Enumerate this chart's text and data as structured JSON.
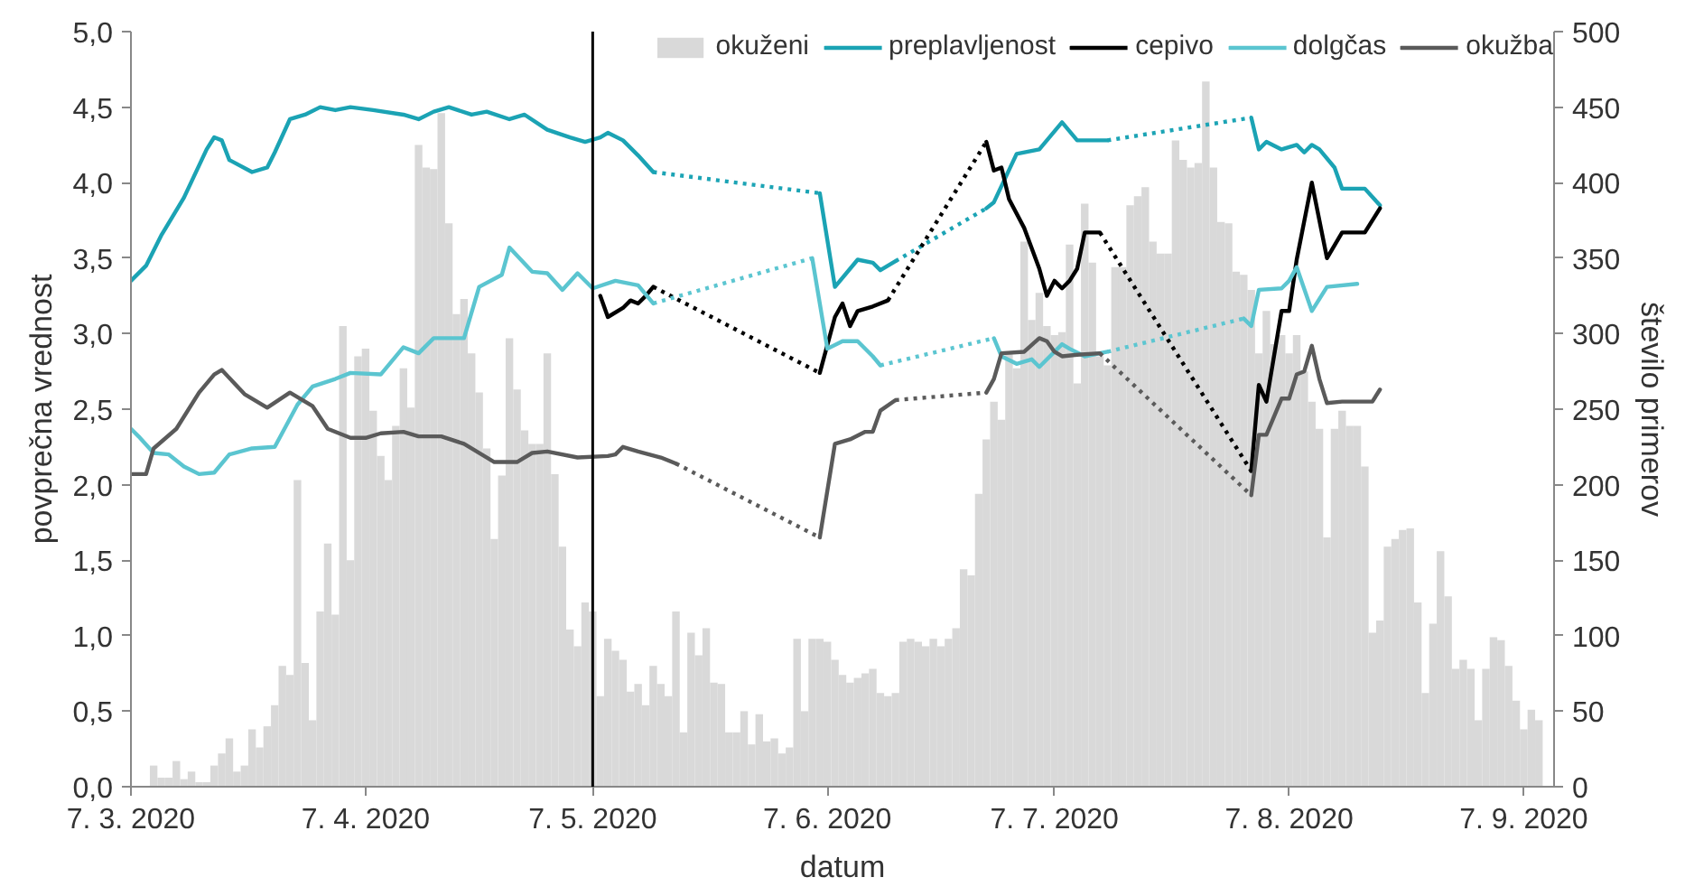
{
  "chart_data": {
    "type": "bar",
    "xlabel": "datum",
    "ylabel": "povprečna vrednost",
    "y2label": "število primerov",
    "xlim": [
      "2020-03-07",
      "2020-09-11"
    ],
    "xticks": [
      {
        "value": "2020-03-07",
        "label": "7. 3. 2020"
      },
      {
        "value": "2020-04-07",
        "label": "7. 4. 2020"
      },
      {
        "value": "2020-05-07",
        "label": "7. 5. 2020"
      },
      {
        "value": "2020-06-07",
        "label": "7. 6. 2020"
      },
      {
        "value": "2020-07-07",
        "label": "7. 7. 2020"
      },
      {
        "value": "2020-08-07",
        "label": "7. 8. 2020"
      },
      {
        "value": "2020-09-07",
        "label": "7. 9. 2020"
      }
    ],
    "ylim": [
      0,
      5
    ],
    "yticks": [
      {
        "value": 0,
        "label": "0,0"
      },
      {
        "value": 0.5,
        "label": "0,5"
      },
      {
        "value": 1,
        "label": "1,0"
      },
      {
        "value": 1.5,
        "label": "1,5"
      },
      {
        "value": 2,
        "label": "2,0"
      },
      {
        "value": 2.5,
        "label": "2,5"
      },
      {
        "value": 3,
        "label": "3,0"
      },
      {
        "value": 3.5,
        "label": "3,5"
      },
      {
        "value": 4,
        "label": "4,0"
      },
      {
        "value": 4.5,
        "label": "4,5"
      },
      {
        "value": 5,
        "label": "5,0"
      }
    ],
    "y2lim": [
      0,
      500
    ],
    "y2ticks": [
      0,
      50,
      100,
      150,
      200,
      250,
      300,
      350,
      400,
      450,
      500
    ],
    "grid": false,
    "legend": "top right",
    "ref_lines": [
      {
        "axis": "x",
        "value": "2020-05-07",
        "color": "#000000"
      }
    ],
    "series": [
      {
        "name": "okuženi",
        "axis": "y2",
        "color": "#d9d9d9",
        "x": [
          "2020-03-07",
          "2020-03-08",
          "2020-03-09",
          "2020-03-10",
          "2020-03-11",
          "2020-03-12",
          "2020-03-13",
          "2020-03-14",
          "2020-03-15",
          "2020-03-16",
          "2020-03-17",
          "2020-03-18",
          "2020-03-19",
          "2020-03-20",
          "2020-03-21",
          "2020-03-22",
          "2020-03-23",
          "2020-03-24",
          "2020-03-25",
          "2020-03-26",
          "2020-03-27",
          "2020-03-28",
          "2020-03-29",
          "2020-03-30",
          "2020-03-31",
          "2020-04-01",
          "2020-04-02",
          "2020-04-03",
          "2020-04-04",
          "2020-04-05",
          "2020-04-06",
          "2020-04-07",
          "2020-04-08",
          "2020-04-09",
          "2020-04-10",
          "2020-04-11",
          "2020-04-12",
          "2020-04-13",
          "2020-04-14",
          "2020-04-15",
          "2020-04-16",
          "2020-04-17",
          "2020-04-18",
          "2020-04-19",
          "2020-04-20",
          "2020-04-21",
          "2020-04-22",
          "2020-04-23",
          "2020-04-24",
          "2020-04-25",
          "2020-04-26",
          "2020-04-27",
          "2020-04-28",
          "2020-04-29",
          "2020-04-30",
          "2020-05-01",
          "2020-05-02",
          "2020-05-03",
          "2020-05-04",
          "2020-05-05",
          "2020-05-06",
          "2020-05-07",
          "2020-05-08",
          "2020-05-09",
          "2020-05-10",
          "2020-05-11",
          "2020-05-12",
          "2020-05-13",
          "2020-05-14",
          "2020-05-15",
          "2020-05-16",
          "2020-05-17",
          "2020-05-18",
          "2020-05-19",
          "2020-05-20",
          "2020-05-21",
          "2020-05-22",
          "2020-05-23",
          "2020-05-24",
          "2020-05-25",
          "2020-05-26",
          "2020-05-27",
          "2020-05-28",
          "2020-05-29",
          "2020-05-30",
          "2020-05-31",
          "2020-06-01",
          "2020-06-02",
          "2020-06-03",
          "2020-06-04",
          "2020-06-05",
          "2020-06-06",
          "2020-06-07",
          "2020-06-08",
          "2020-06-09",
          "2020-06-10",
          "2020-06-11",
          "2020-06-12",
          "2020-06-13",
          "2020-06-14",
          "2020-06-15",
          "2020-06-16",
          "2020-06-17",
          "2020-06-18",
          "2020-06-19",
          "2020-06-20",
          "2020-06-21",
          "2020-06-22",
          "2020-06-23",
          "2020-06-24",
          "2020-06-25",
          "2020-06-26",
          "2020-06-27",
          "2020-06-28",
          "2020-06-29",
          "2020-06-30",
          "2020-07-01",
          "2020-07-02",
          "2020-07-03",
          "2020-07-04",
          "2020-07-05",
          "2020-07-06",
          "2020-07-07",
          "2020-07-08",
          "2020-07-09",
          "2020-07-10",
          "2020-07-11",
          "2020-07-12",
          "2020-07-13",
          "2020-07-14",
          "2020-07-15",
          "2020-07-16",
          "2020-07-17",
          "2020-07-18",
          "2020-07-19",
          "2020-07-20",
          "2020-07-21",
          "2020-07-22",
          "2020-07-23",
          "2020-07-24",
          "2020-07-25",
          "2020-07-26",
          "2020-07-27",
          "2020-07-28",
          "2020-07-29",
          "2020-07-30",
          "2020-07-31",
          "2020-08-01",
          "2020-08-02",
          "2020-08-03",
          "2020-08-04",
          "2020-08-05",
          "2020-08-06",
          "2020-08-07",
          "2020-08-08",
          "2020-08-09",
          "2020-08-10",
          "2020-08-11",
          "2020-08-12",
          "2020-08-13",
          "2020-08-14",
          "2020-08-15",
          "2020-08-16",
          "2020-08-17",
          "2020-08-18",
          "2020-08-19",
          "2020-08-20",
          "2020-08-21",
          "2020-08-22",
          "2020-08-23",
          "2020-08-24",
          "2020-08-25",
          "2020-08-26",
          "2020-08-27",
          "2020-08-28",
          "2020-08-29",
          "2020-08-30",
          "2020-08-31",
          "2020-09-01",
          "2020-09-02",
          "2020-09-03",
          "2020-09-04",
          "2020-09-05",
          "2020-09-06",
          "2020-09-07",
          "2020-09-08",
          "2020-09-09"
        ],
        "values": [
          0,
          0,
          0,
          14,
          6,
          6,
          17,
          5,
          10,
          3,
          3,
          14,
          22,
          32,
          10,
          14,
          38,
          26,
          40,
          54,
          80,
          74,
          203,
          82,
          44,
          116,
          161,
          114,
          305,
          150,
          285,
          290,
          249,
          219,
          203,
          239,
          277,
          251,
          425,
          410,
          409,
          446,
          373,
          313,
          323,
          287,
          261,
          224,
          164,
          206,
          297,
          263,
          236,
          227,
          227,
          287,
          207,
          159,
          104,
          93,
          122,
          116,
          60,
          98,
          90,
          84,
          63,
          68,
          54,
          80,
          68,
          60,
          116,
          36,
          102,
          87,
          105,
          69,
          68,
          36,
          36,
          50,
          28,
          48,
          30,
          32,
          22,
          26,
          98,
          50,
          98,
          98,
          96,
          84,
          74,
          69,
          72,
          75,
          78,
          62,
          60,
          62,
          96,
          98,
          96,
          93,
          98,
          93,
          98,
          105,
          144,
          140,
          194,
          230,
          255,
          243,
          287,
          277,
          361,
          309,
          327,
          305,
          299,
          301,
          359,
          267,
          386,
          347,
          285,
          279,
          344,
          344,
          385,
          391,
          397,
          361,
          353,
          353,
          428,
          415,
          410,
          413,
          467,
          410,
          374,
          373,
          341,
          339,
          329,
          287,
          315,
          293,
          299,
          287,
          299,
          275,
          255,
          237,
          165,
          237,
          249,
          239,
          239,
          212,
          102,
          110,
          159,
          164,
          170,
          171,
          122,
          62,
          108,
          156,
          126,
          78,
          84,
          78,
          44,
          78,
          99,
          97,
          80,
          57,
          38,
          51,
          44
        ]
      },
      {
        "name": "preplavljenost",
        "type": "line",
        "color": "#1ba3b4",
        "line_style": "solid",
        "x": [
          "2020-03-07",
          "2020-03-09",
          "2020-03-11",
          "2020-03-14",
          "2020-03-17",
          "2020-03-18",
          "2020-03-19",
          "2020-03-20",
          "2020-03-23",
          "2020-03-25",
          "2020-03-26",
          "2020-03-28",
          "2020-03-30",
          "2020-04-01",
          "2020-04-03",
          "2020-04-05",
          "2020-04-08",
          "2020-04-12",
          "2020-04-14",
          "2020-04-16",
          "2020-04-18",
          "2020-04-21",
          "2020-04-23",
          "2020-04-26",
          "2020-04-28",
          "2020-05-01",
          "2020-05-04",
          "2020-05-06",
          "2020-05-08",
          "2020-05-09",
          "2020-05-11",
          "2020-05-13",
          "2020-05-15",
          "2020-05-20",
          "2020-06-06",
          "2020-06-08",
          "2020-06-11",
          "2020-06-13",
          "2020-06-14",
          "2020-06-16",
          "2020-06-20",
          "2020-06-28",
          "2020-06-29",
          "2020-07-02",
          "2020-07-05",
          "2020-07-08",
          "2020-07-10",
          "2020-07-14",
          "2020-07-20",
          "2020-08-02",
          "2020-08-03",
          "2020-08-04",
          "2020-08-06",
          "2020-08-08",
          "2020-08-09",
          "2020-08-10",
          "2020-08-11",
          "2020-08-13",
          "2020-08-14",
          "2020-08-17",
          "2020-08-19"
        ],
        "values": [
          3.35,
          3.45,
          3.65,
          3.9,
          4.22,
          4.3,
          4.28,
          4.15,
          4.07,
          4.1,
          4.2,
          4.42,
          4.45,
          4.5,
          4.48,
          4.5,
          4.48,
          4.45,
          4.42,
          4.47,
          4.5,
          4.45,
          4.47,
          4.42,
          4.45,
          4.35,
          4.3,
          4.27,
          4.3,
          4.33,
          4.28,
          4.18,
          4.07,
          null,
          3.93,
          3.31,
          3.49,
          3.47,
          3.42,
          3.48,
          null,
          3.83,
          3.87,
          4.19,
          4.22,
          4.4,
          4.28,
          4.28,
          null,
          4.43,
          4.22,
          4.27,
          4.22,
          4.25,
          4.2,
          4.25,
          4.22,
          4.1,
          3.96,
          3.96,
          3.85
        ]
      },
      {
        "name": "cepivo",
        "type": "line",
        "color": "#000000",
        "line_style": "solid",
        "x": [
          "2020-05-08",
          "2020-05-09",
          "2020-05-11",
          "2020-05-12",
          "2020-05-13",
          "2020-05-14",
          "2020-05-15",
          "2020-05-25",
          "2020-06-06",
          "2020-06-08",
          "2020-06-09",
          "2020-06-10",
          "2020-06-11",
          "2020-06-13",
          "2020-06-15",
          "2020-06-20",
          "2020-06-28",
          "2020-06-29",
          "2020-06-30",
          "2020-07-01",
          "2020-07-03",
          "2020-07-05",
          "2020-07-06",
          "2020-07-07",
          "2020-07-08",
          "2020-07-09",
          "2020-07-10",
          "2020-07-11",
          "2020-07-13",
          "2020-07-20",
          "2020-08-02",
          "2020-08-03",
          "2020-08-04",
          "2020-08-06",
          "2020-08-07",
          "2020-08-08",
          "2020-08-10",
          "2020-08-12",
          "2020-08-14",
          "2020-08-17",
          "2020-08-19"
        ],
        "values": [
          3.25,
          3.11,
          3.17,
          3.22,
          3.2,
          3.25,
          3.31,
          null,
          2.74,
          3.11,
          3.2,
          3.05,
          3.15,
          3.18,
          3.22,
          null,
          4.27,
          4.08,
          4.1,
          3.89,
          3.7,
          3.43,
          3.25,
          3.35,
          3.3,
          3.35,
          3.43,
          3.67,
          3.67,
          null,
          2.09,
          2.66,
          2.55,
          3.15,
          3.15,
          3.49,
          4.0,
          3.5,
          3.67,
          3.67,
          3.83
        ]
      },
      {
        "name": "dolgčas",
        "type": "line",
        "color": "#5bc5d0",
        "line_style": "solid",
        "x": [
          "2020-03-07",
          "2020-03-08",
          "2020-03-10",
          "2020-03-12",
          "2020-03-14",
          "2020-03-16",
          "2020-03-18",
          "2020-03-20",
          "2020-03-23",
          "2020-03-26",
          "2020-03-29",
          "2020-03-31",
          "2020-04-03",
          "2020-04-05",
          "2020-04-09",
          "2020-04-12",
          "2020-04-14",
          "2020-04-16",
          "2020-04-20",
          "2020-04-22",
          "2020-04-25",
          "2020-04-26",
          "2020-04-29",
          "2020-05-01",
          "2020-05-03",
          "2020-05-05",
          "2020-05-07",
          "2020-05-10",
          "2020-05-13",
          "2020-05-15",
          "2020-05-25",
          "2020-06-05",
          "2020-06-07",
          "2020-06-09",
          "2020-06-11",
          "2020-06-13",
          "2020-06-14",
          "2020-06-20",
          "2020-06-29",
          "2020-06-30",
          "2020-07-02",
          "2020-07-04",
          "2020-07-05",
          "2020-07-08",
          "2020-07-09",
          "2020-07-11",
          "2020-07-14",
          "2020-07-20",
          "2020-08-01",
          "2020-08-02",
          "2020-08-03",
          "2020-08-06",
          "2020-08-07",
          "2020-08-08",
          "2020-08-10",
          "2020-08-12",
          "2020-08-16"
        ],
        "values": [
          2.37,
          2.32,
          2.21,
          2.2,
          2.12,
          2.07,
          2.08,
          2.2,
          2.24,
          2.25,
          2.53,
          2.65,
          2.7,
          2.74,
          2.73,
          2.91,
          2.87,
          2.97,
          2.97,
          3.31,
          3.39,
          3.57,
          3.41,
          3.4,
          3.29,
          3.4,
          3.3,
          3.35,
          3.32,
          3.2,
          null,
          3.5,
          2.9,
          2.95,
          2.95,
          2.85,
          2.79,
          null,
          2.97,
          2.85,
          2.8,
          2.83,
          2.78,
          2.93,
          2.9,
          2.85,
          2.88,
          null,
          3.1,
          3.05,
          3.29,
          3.3,
          3.35,
          3.44,
          3.15,
          3.31,
          3.33
        ]
      },
      {
        "name": "okužba",
        "type": "line",
        "color": "#5a5a5a",
        "line_style": "solid",
        "x": [
          "2020-03-07",
          "2020-03-09",
          "2020-03-10",
          "2020-03-13",
          "2020-03-16",
          "2020-03-18",
          "2020-03-19",
          "2020-03-22",
          "2020-03-25",
          "2020-03-28",
          "2020-03-31",
          "2020-04-02",
          "2020-04-05",
          "2020-04-07",
          "2020-04-09",
          "2020-04-12",
          "2020-04-14",
          "2020-04-17",
          "2020-04-20",
          "2020-04-24",
          "2020-04-27",
          "2020-04-29",
          "2020-05-01",
          "2020-05-05",
          "2020-05-09",
          "2020-05-10",
          "2020-05-11",
          "2020-05-13",
          "2020-05-16",
          "2020-05-18",
          "2020-05-25",
          "2020-06-06",
          "2020-06-08",
          "2020-06-10",
          "2020-06-12",
          "2020-06-13",
          "2020-06-14",
          "2020-06-16",
          "2020-06-20",
          "2020-06-28",
          "2020-06-29",
          "2020-06-30",
          "2020-07-03",
          "2020-07-05",
          "2020-07-06",
          "2020-07-07",
          "2020-07-08",
          "2020-07-10",
          "2020-07-13",
          "2020-07-20",
          "2020-08-02",
          "2020-08-03",
          "2020-08-04",
          "2020-08-06",
          "2020-08-07",
          "2020-08-08",
          "2020-08-09",
          "2020-08-10",
          "2020-08-11",
          "2020-08-12",
          "2020-08-14",
          "2020-08-18",
          "2020-08-19"
        ],
        "values": [
          2.07,
          2.07,
          2.24,
          2.37,
          2.61,
          2.73,
          2.76,
          2.6,
          2.51,
          2.61,
          2.52,
          2.37,
          2.31,
          2.31,
          2.34,
          2.35,
          2.32,
          2.32,
          2.27,
          2.15,
          2.15,
          2.21,
          2.22,
          2.18,
          2.19,
          2.2,
          2.25,
          2.22,
          2.18,
          2.14,
          null,
          1.65,
          2.27,
          2.3,
          2.35,
          2.35,
          2.49,
          2.56,
          null,
          2.61,
          2.7,
          2.87,
          2.88,
          2.97,
          2.95,
          2.88,
          2.85,
          2.86,
          2.87,
          null,
          1.93,
          2.33,
          2.33,
          2.57,
          2.57,
          2.73,
          2.75,
          2.92,
          2.7,
          2.54,
          2.55,
          2.55,
          2.63
        ]
      },
      {
        "type": "line",
        "color": "#1ca4b5",
        "line_style": "dotted",
        "x": [
          "2020-05-15",
          "2020-06-06",
          "2020-06-10",
          "2020-06-16",
          "2020-06-28",
          "2020-07-01",
          "2020-07-14",
          "2020-08-02"
        ],
        "values": [
          4.07,
          3.93,
          null,
          3.48,
          3.83,
          null,
          4.28,
          4.43
        ]
      },
      {
        "type": "line",
        "color": "#010101",
        "line_style": "dotted",
        "x": [
          "2020-05-15",
          "2020-06-06",
          "2020-06-10",
          "2020-06-15",
          "2020-06-28",
          "2020-07-01",
          "2020-07-13",
          "2020-08-02"
        ],
        "values": [
          3.31,
          2.74,
          null,
          3.22,
          4.27,
          null,
          3.67,
          2.09
        ]
      },
      {
        "type": "line",
        "color": "#5cc6d1",
        "line_style": "dotted",
        "x": [
          "2020-05-15",
          "2020-06-05",
          "2020-06-10",
          "2020-06-14",
          "2020-06-29",
          "2020-07-01",
          "2020-07-14",
          "2020-08-01"
        ],
        "values": [
          3.2,
          3.5,
          null,
          2.79,
          2.97,
          null,
          2.88,
          3.1
        ]
      },
      {
        "type": "line",
        "color": "#5b5b5b",
        "line_style": "dotted",
        "x": [
          "2020-05-18",
          "2020-06-06",
          "2020-06-10",
          "2020-06-16",
          "2020-06-28",
          "2020-07-01",
          "2020-07-13",
          "2020-08-02"
        ],
        "values": [
          2.14,
          1.65,
          null,
          2.56,
          2.61,
          null,
          2.87,
          1.93
        ]
      }
    ]
  }
}
